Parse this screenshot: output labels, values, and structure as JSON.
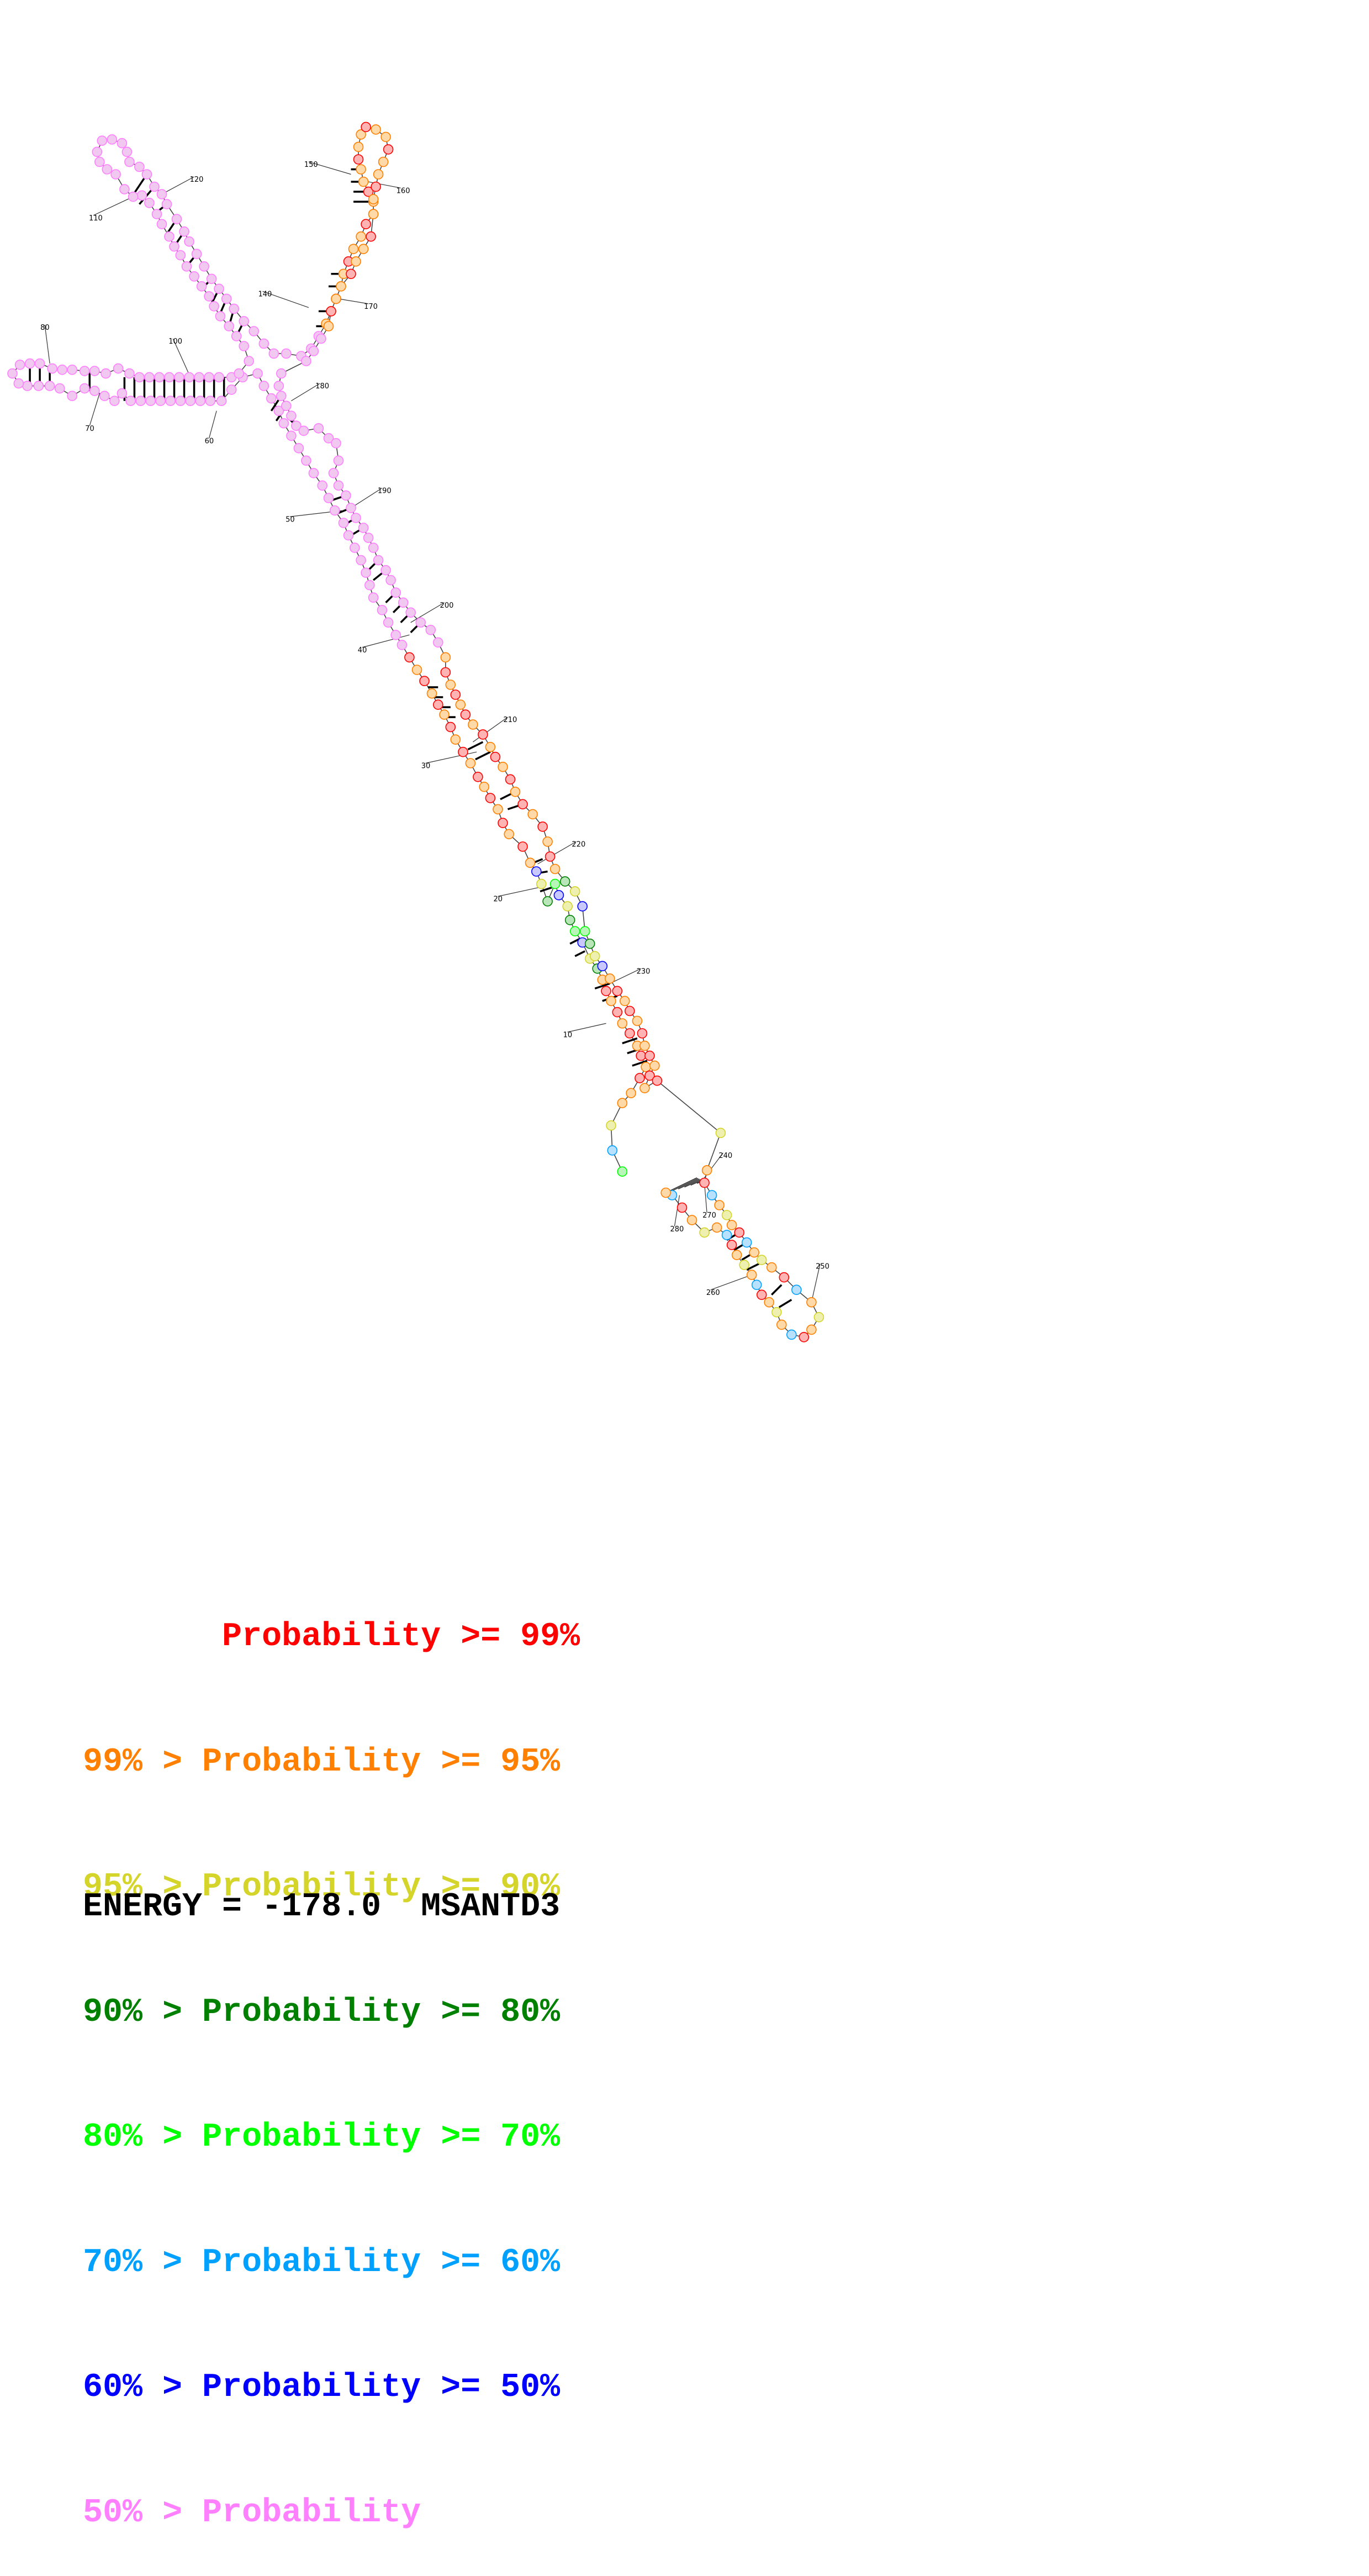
{
  "diagram": {
    "type": "rna-secondary-structure",
    "nucleotide_count": 290,
    "position_labels": [
      "10",
      "20",
      "30",
      "40",
      "50",
      "60",
      "70",
      "80",
      "100",
      "110",
      "120",
      "140",
      "150",
      "160",
      "170",
      "180",
      "190",
      "200",
      "210",
      "220",
      "230",
      "240",
      "250",
      "260",
      "270",
      "280"
    ]
  },
  "legend": {
    "rows": [
      {
        "text": "       Probability >= 99%",
        "color": "#ff0000"
      },
      {
        "text": "99% > Probability >= 95%",
        "color": "#ff8000"
      },
      {
        "text": "95% > Probability >= 90%",
        "color": "#d4d42a"
      },
      {
        "text": "90% > Probability >= 80%",
        "color": "#008000"
      },
      {
        "text": "80% > Probability >= 70%",
        "color": "#00ff00"
      },
      {
        "text": "70% > Probability >= 60%",
        "color": "#00a0ff"
      },
      {
        "text": "60% > Probability >= 50%",
        "color": "#0000ff"
      },
      {
        "text": "50% > Probability",
        "color": "#ff80ff"
      }
    ]
  },
  "footer": {
    "energy_text": "ENERGY = -178.0  MSANTD3"
  },
  "colors": {
    "p99": "#ff0000",
    "p95": "#ff8000",
    "p90": "#d4d42a",
    "p80": "#008000",
    "p70": "#00ff00",
    "p60": "#00a0ff",
    "p50": "#0000ff",
    "plow": "#ff80ff",
    "fill_p99": "#ffb3b3",
    "fill_p95": "#ffd9a8",
    "fill_p90": "#eef0b0",
    "fill_p80": "#b8e6b8",
    "fill_p70": "#b8f5b8",
    "fill_p60": "#b8e0ff",
    "fill_p50": "#c8c8ff",
    "fill_plow": "#f0c8f0"
  }
}
